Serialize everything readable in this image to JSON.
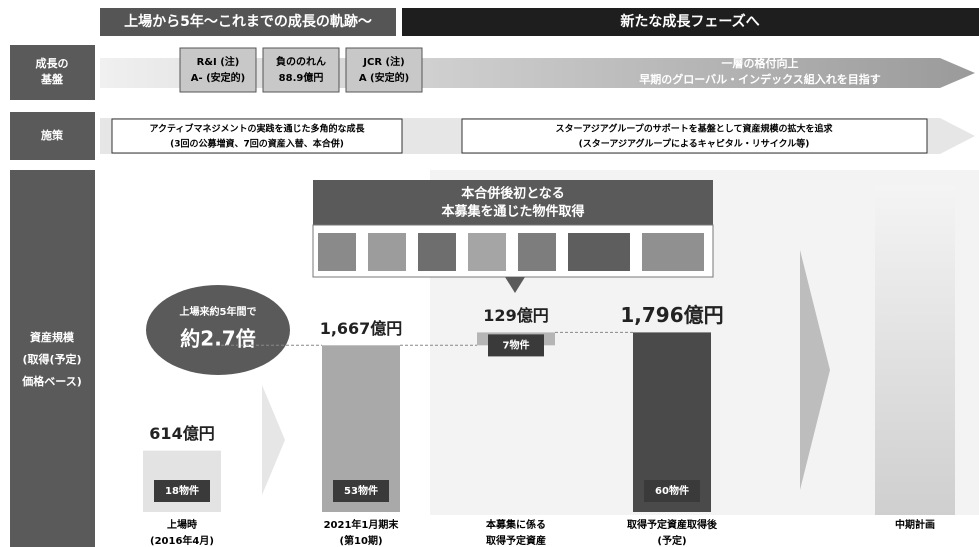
{
  "header": {
    "left": "上場から5年～これまでの成長の軌跡～",
    "right": "新たな成長フェーズへ"
  },
  "rows": {
    "foundation": {
      "label": [
        "成長の",
        "基盤"
      ],
      "badges": [
        [
          "R&I (注)",
          "A- (安定的)"
        ],
        [
          "負ののれん",
          "88.9億円"
        ],
        [
          "JCR (注)",
          "A (安定的)"
        ]
      ],
      "goals": [
        "一層の格付向上",
        "早期のグローバル・インデックス組入れを目指す"
      ]
    },
    "measures": {
      "label": "施策",
      "left": [
        "アクティブマネジメントの実践を通じた多角的な成長",
        "(3回の公募増資、7回の資産入替、本合併)"
      ],
      "right": [
        "スターアジアグループのサポートを基盤として資産規模の拡大を追求",
        "(スターアジアグループによるキャピタル・リサイクル等)"
      ]
    },
    "assets": {
      "label": [
        "資産規模",
        "(取得(予定)",
        "価格ベース)"
      ]
    }
  },
  "chart_data": {
    "type": "waterfall",
    "categories": [
      [
        "上場時",
        "(2016年4月)"
      ],
      [
        "2021年1月期末",
        "(第10期)"
      ],
      [
        "本募集に係る",
        "取得予定資産"
      ],
      [
        "取得予定資産取得後",
        "(予定)"
      ],
      [
        "中期計画"
      ]
    ],
    "values": [
      614,
      1667,
      129,
      1796,
      null
    ],
    "value_labels": [
      "614億円",
      "1,667億円",
      "129億円",
      "1,796億円",
      null
    ],
    "is_total": [
      true,
      true,
      false,
      true,
      false
    ],
    "counts": [
      "18物件",
      "53物件",
      "7物件",
      "60物件",
      null
    ],
    "colors": [
      "#e3e3e3",
      "#a9a9a9",
      "#b5b5b5",
      "#4a4a4a",
      null
    ],
    "callout": [
      "本合併後初となる",
      "本募集を通じた物件取得"
    ],
    "growth_note": [
      "上場来約5年間で",
      "約2.7倍"
    ]
  }
}
